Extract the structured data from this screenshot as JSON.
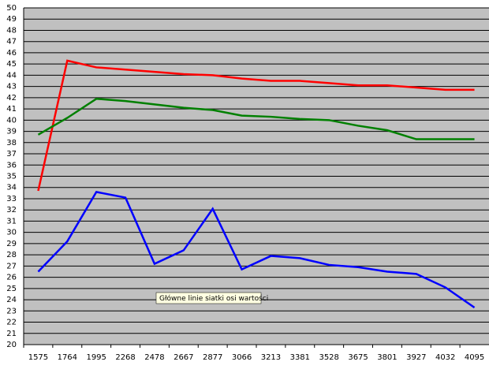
{
  "chart_data": {
    "type": "line",
    "categories": [
      "1575",
      "1764",
      "1995",
      "2268",
      "2478",
      "2667",
      "2877",
      "3066",
      "3213",
      "3381",
      "3528",
      "3675",
      "3801",
      "3927",
      "4032",
      "4095"
    ],
    "series": [
      {
        "color": "#ff0000",
        "values": [
          33.7,
          45.3,
          44.7,
          44.5,
          44.3,
          44.1,
          44.0,
          43.7,
          43.5,
          43.5,
          43.3,
          43.1,
          43.1,
          42.9,
          42.7,
          42.7
        ]
      },
      {
        "color": "#008000",
        "values": [
          38.7,
          40.2,
          41.9,
          41.7,
          41.4,
          41.1,
          40.9,
          40.4,
          40.3,
          40.1,
          40.0,
          39.5,
          39.1,
          38.3,
          38.3,
          38.3
        ]
      },
      {
        "color": "#0000ff",
        "values": [
          26.5,
          29.2,
          33.6,
          33.1,
          27.2,
          28.4,
          32.1,
          26.7,
          27.9,
          27.7,
          27.1,
          26.9,
          26.5,
          26.3,
          25.1,
          23.3
        ]
      }
    ],
    "ylim": [
      20,
      50
    ],
    "yticks": [
      20,
      21,
      22,
      23,
      24,
      25,
      26,
      27,
      28,
      29,
      30,
      31,
      32,
      33,
      34,
      35,
      36,
      37,
      38,
      39,
      40,
      41,
      42,
      43,
      44,
      45,
      46,
      47,
      48,
      49,
      50
    ],
    "grid": true,
    "tooltip": "Główne linie siatki osi wartości"
  }
}
